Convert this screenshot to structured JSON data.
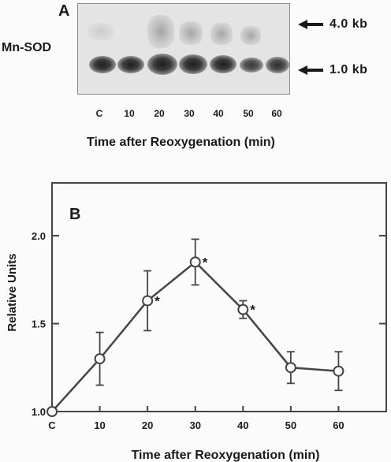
{
  "panel_a": {
    "letter": "A",
    "gene_label": "Mn-SOD",
    "markers": [
      {
        "label": "4.0  kb"
      },
      {
        "label": "1.0  kb"
      }
    ],
    "lanes": [
      "C",
      "10",
      "20",
      "30",
      "40",
      "50",
      "60"
    ],
    "x_title": "Time after Reoxygenation   (min)"
  },
  "chart_data": {
    "type": "line",
    "panel_letter": "B",
    "x": [
      "C",
      "10",
      "20",
      "30",
      "40",
      "50",
      "60"
    ],
    "x_numeric": [
      0,
      10,
      20,
      30,
      40,
      50,
      60
    ],
    "series": [
      {
        "values": [
          1.0,
          1.3,
          1.63,
          1.85,
          1.58,
          1.25,
          1.23
        ],
        "error": [
          0,
          0.15,
          0.17,
          0.13,
          0.05,
          0.09,
          0.11
        ],
        "significant": [
          false,
          false,
          true,
          true,
          true,
          false,
          false
        ]
      }
    ],
    "xlabel": "Time after Reoxygenation (min)",
    "ylabel": "Relative Units",
    "xlim": [
      0,
      70
    ],
    "ylim": [
      1.0,
      2.3
    ],
    "yticks": [
      1.0,
      1.5,
      2.0
    ],
    "ytick_labels": [
      "1.0",
      "1.5",
      "2.0"
    ],
    "significance_marker": "*",
    "marker_style": "open-circle",
    "grid": false
  }
}
